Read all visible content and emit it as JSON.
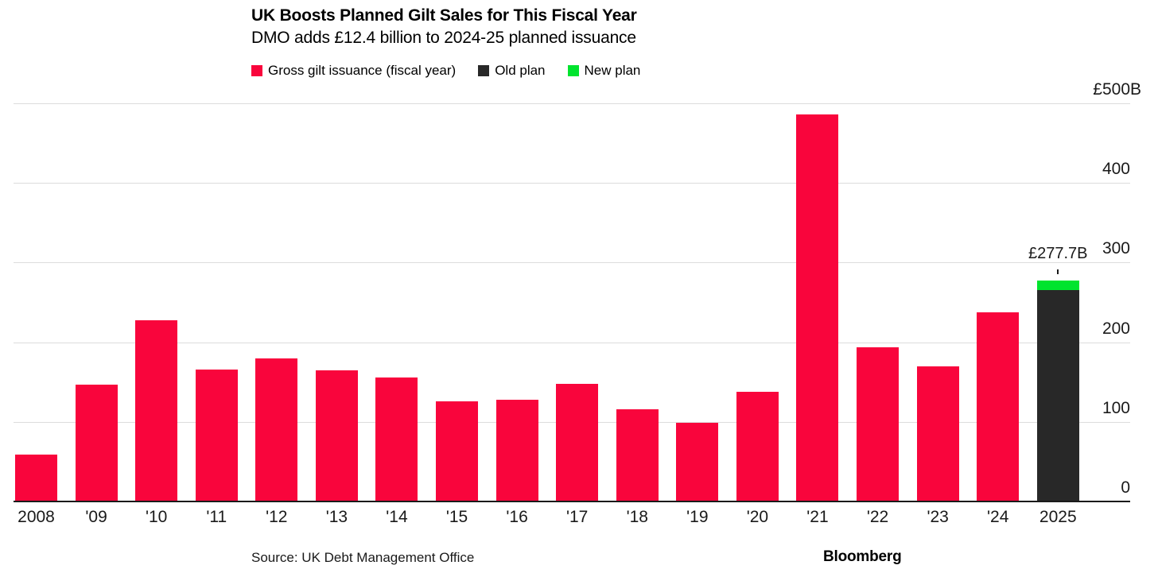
{
  "header": {
    "title": "UK Boosts Planned Gilt Sales for This Fiscal Year",
    "subtitle": "DMO adds £12.4 billion to 2024-25 planned issuance"
  },
  "legend": [
    {
      "label": "Gross gilt issuance (fiscal year)",
      "color": "#f9053c"
    },
    {
      "label": "Old plan",
      "color": "#282828"
    },
    {
      "label": "New plan",
      "color": "#00e42e"
    }
  ],
  "footer": {
    "source": "Source: UK Debt Management Office",
    "credit": "Bloomberg"
  },
  "chart_data": {
    "type": "bar",
    "title": "UK Boosts Planned Gilt Sales for This Fiscal Year",
    "subtitle": "DMO adds £12.4 billion to 2024-25 planned issuance",
    "unit": "billions GBP",
    "categories": [
      "2008",
      "'09",
      "'10",
      "'11",
      "'12",
      "'13",
      "'14",
      "'15",
      "'16",
      "'17",
      "'18",
      "'19",
      "'20",
      "'21",
      "'22",
      "'23",
      "'24",
      "2025"
    ],
    "series": [
      {
        "name": "Gross gilt issuance (fiscal year)",
        "key": "gross-gilt-issuance",
        "color": "#f9053c",
        "values": [
          58.5,
          146.5,
          227.5,
          166,
          180,
          165,
          155.5,
          126,
          127.5,
          147.5,
          115.5,
          98.5,
          137.5,
          486,
          193.5,
          169.5,
          237.5,
          null
        ]
      },
      {
        "name": "Old plan",
        "key": "old-plan",
        "color": "#282828",
        "values": [
          null,
          null,
          null,
          null,
          null,
          null,
          null,
          null,
          null,
          null,
          null,
          null,
          null,
          null,
          null,
          null,
          null,
          265.3
        ]
      },
      {
        "name": "New plan",
        "key": "new-plan",
        "color": "#00e42e",
        "values": [
          null,
          null,
          null,
          null,
          null,
          null,
          null,
          null,
          null,
          null,
          null,
          null,
          null,
          null,
          null,
          null,
          null,
          12.4
        ]
      }
    ],
    "stacked": true,
    "annotation": {
      "text": "£277.7B",
      "category": "2025",
      "total_value": 277.7
    },
    "ylim": [
      0,
      500
    ],
    "yticks": [
      {
        "value": 500,
        "label": "£500",
        "suffix": "B"
      },
      {
        "value": 400,
        "label": "400"
      },
      {
        "value": 300,
        "label": "300"
      },
      {
        "value": 200,
        "label": "200"
      },
      {
        "value": 100,
        "label": "100"
      },
      {
        "value": 0,
        "label": "0"
      }
    ],
    "grid": true,
    "axis_side": "right",
    "legend_position": "top",
    "colors": {
      "grid": "#dcdcdc",
      "axis": "#1a1a1a",
      "text": "#1a1a1a",
      "background": "#ffffff"
    }
  }
}
